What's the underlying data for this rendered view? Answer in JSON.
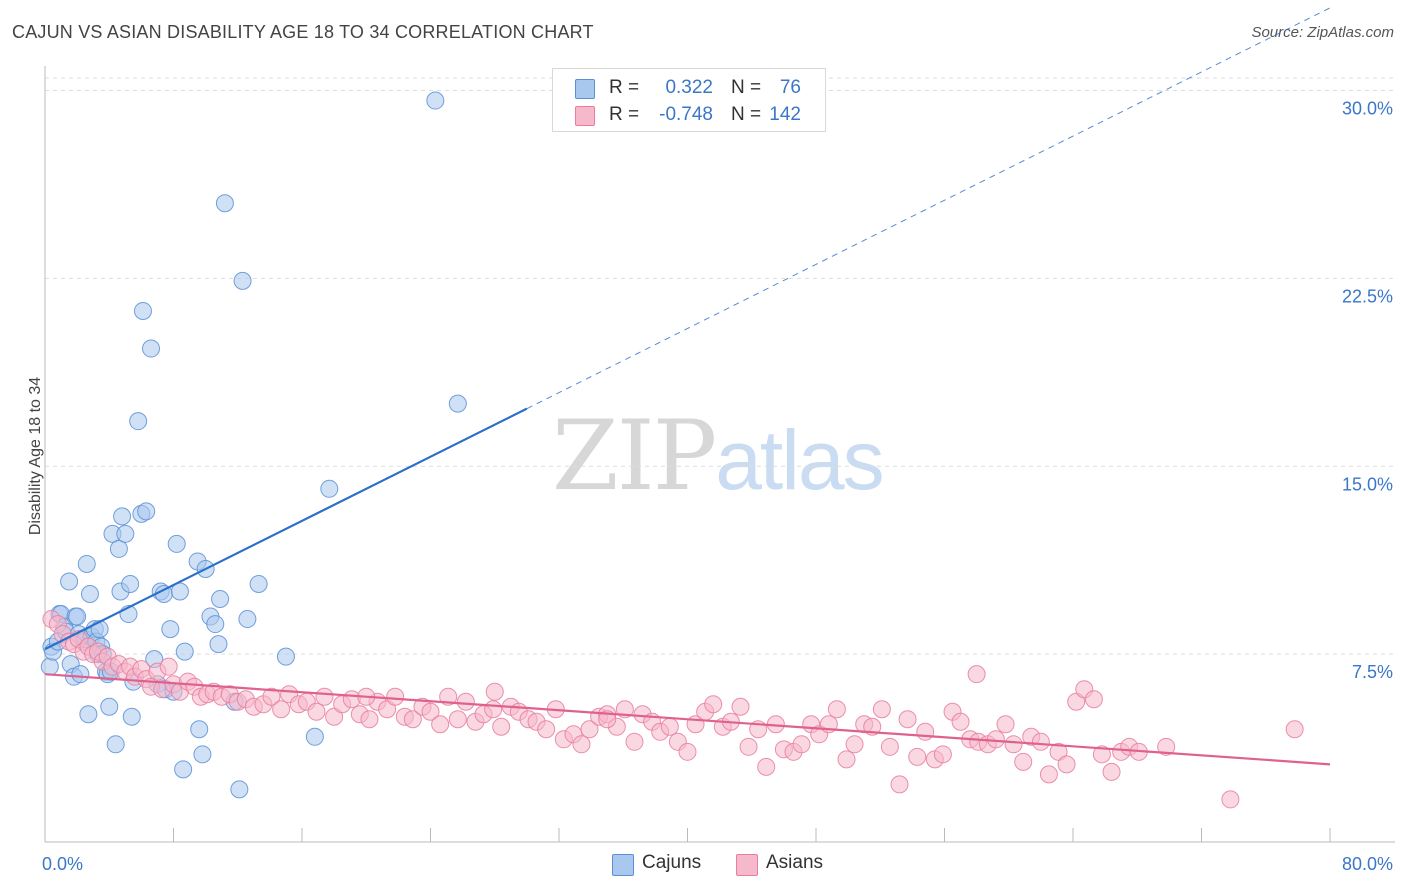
{
  "title": "CAJUN VS ASIAN DISABILITY AGE 18 TO 34 CORRELATION CHART",
  "source": "Source: ZipAtlas.com",
  "watermark": {
    "zip": "ZIP",
    "atlas": "atlas"
  },
  "legend": {
    "rows": [
      {
        "r_label": "R =",
        "r_value": "0.322",
        "n_label": "N =",
        "n_value": "76",
        "color": "#a9c8ee"
      },
      {
        "r_label": "R =",
        "r_value": "-0.748",
        "n_label": "N =",
        "n_value": "142",
        "color": "#f6b8cb"
      }
    ]
  },
  "bottom_legend": [
    {
      "label": "Cajuns",
      "color": "#a9c8ee"
    },
    {
      "label": "Asians",
      "color": "#f6b8cb"
    }
  ],
  "chart_data": {
    "type": "scatter",
    "title": "CAJUN VS ASIAN DISABILITY AGE 18 TO 34 CORRELATION CHART",
    "xlabel": "",
    "ylabel": "Disability Age 18 to 34",
    "xlim": [
      0,
      80
    ],
    "ylim": [
      0,
      30.5
    ],
    "x_tick_labels": [
      {
        "value": 0,
        "label": "0.0%"
      },
      {
        "value": 80,
        "label": "80.0%"
      }
    ],
    "y_tick_labels": [
      {
        "value": 7.5,
        "label": "7.5%"
      },
      {
        "value": 15,
        "label": "15.0%"
      },
      {
        "value": 22.5,
        "label": "22.5%"
      },
      {
        "value": 30,
        "label": "30.0%"
      }
    ],
    "x_minor_ticks": [
      8,
      16,
      24,
      32,
      40,
      48,
      56,
      64,
      72,
      80
    ],
    "grid": true,
    "series": [
      {
        "name": "Cajuns",
        "color": "#5b8fd6",
        "fill": "#a9c8ee",
        "trend": {
          "x0": 0,
          "y0": 7.7,
          "x1": 30,
          "y1": 17.3,
          "dash_to_x": 80,
          "color": "#2a6fc9"
        },
        "points": [
          [
            0.3,
            7.0
          ],
          [
            0.4,
            7.8
          ],
          [
            0.5,
            7.6
          ],
          [
            0.8,
            8.0
          ],
          [
            0.9,
            9.1
          ],
          [
            1.0,
            9.1
          ],
          [
            1.2,
            8.6
          ],
          [
            1.3,
            8.4
          ],
          [
            1.5,
            10.4
          ],
          [
            1.6,
            7.1
          ],
          [
            1.8,
            6.6
          ],
          [
            1.9,
            9.0
          ],
          [
            2.1,
            8.3
          ],
          [
            2.2,
            6.7
          ],
          [
            2.4,
            8.0
          ],
          [
            2.5,
            8.1
          ],
          [
            2.6,
            11.1
          ],
          [
            2.7,
            5.1
          ],
          [
            2.8,
            9.9
          ],
          [
            2.9,
            8.2
          ],
          [
            3.1,
            8.5
          ],
          [
            3.2,
            8.0
          ],
          [
            3.3,
            7.5
          ],
          [
            3.4,
            8.5
          ],
          [
            3.5,
            7.8
          ],
          [
            3.6,
            7.5
          ],
          [
            3.8,
            6.8
          ],
          [
            3.9,
            6.7
          ],
          [
            4.0,
            5.4
          ],
          [
            4.1,
            6.8
          ],
          [
            4.2,
            12.3
          ],
          [
            4.4,
            3.9
          ],
          [
            4.6,
            11.7
          ],
          [
            4.7,
            10.0
          ],
          [
            4.8,
            13.0
          ],
          [
            5.0,
            12.3
          ],
          [
            5.2,
            9.1
          ],
          [
            5.3,
            10.3
          ],
          [
            5.4,
            5.0
          ],
          [
            5.5,
            6.4
          ],
          [
            5.8,
            16.8
          ],
          [
            6.0,
            13.1
          ],
          [
            6.1,
            21.2
          ],
          [
            6.3,
            13.2
          ],
          [
            6.6,
            19.7
          ],
          [
            6.8,
            7.3
          ],
          [
            7.0,
            6.3
          ],
          [
            7.2,
            10.0
          ],
          [
            7.4,
            9.9
          ],
          [
            7.5,
            6.1
          ],
          [
            7.8,
            8.5
          ],
          [
            8.0,
            6.0
          ],
          [
            8.2,
            11.9
          ],
          [
            8.4,
            10.0
          ],
          [
            8.6,
            2.9
          ],
          [
            8.7,
            7.6
          ],
          [
            9.5,
            11.2
          ],
          [
            9.6,
            4.5
          ],
          [
            9.8,
            3.5
          ],
          [
            10.0,
            10.9
          ],
          [
            10.3,
            9.0
          ],
          [
            10.6,
            8.7
          ],
          [
            10.8,
            7.9
          ],
          [
            10.9,
            9.7
          ],
          [
            11.2,
            25.5
          ],
          [
            11.8,
            5.6
          ],
          [
            12.1,
            2.1
          ],
          [
            12.3,
            22.4
          ],
          [
            12.6,
            8.9
          ],
          [
            13.3,
            10.3
          ],
          [
            15.0,
            7.4
          ],
          [
            16.8,
            4.2
          ],
          [
            17.7,
            14.1
          ],
          [
            24.3,
            29.6
          ],
          [
            25.7,
            17.5
          ],
          [
            2.0,
            9.0
          ]
        ]
      },
      {
        "name": "Asians",
        "color": "#e87da0",
        "fill": "#f6b8cb",
        "trend": {
          "x0": 0,
          "y0": 6.7,
          "x1": 80,
          "y1": 3.1,
          "color": "#e0608e"
        },
        "points": [
          [
            0.4,
            8.9
          ],
          [
            0.8,
            8.7
          ],
          [
            1.1,
            8.3
          ],
          [
            1.5,
            8.0
          ],
          [
            1.8,
            7.9
          ],
          [
            2.1,
            8.1
          ],
          [
            2.4,
            7.6
          ],
          [
            2.7,
            7.8
          ],
          [
            3.0,
            7.5
          ],
          [
            3.3,
            7.6
          ],
          [
            3.6,
            7.2
          ],
          [
            3.9,
            7.4
          ],
          [
            4.2,
            7.0
          ],
          [
            4.6,
            7.1
          ],
          [
            5.0,
            6.8
          ],
          [
            5.3,
            7.0
          ],
          [
            5.6,
            6.6
          ],
          [
            6.0,
            6.9
          ],
          [
            6.3,
            6.5
          ],
          [
            6.6,
            6.2
          ],
          [
            7.0,
            6.8
          ],
          [
            7.3,
            6.1
          ],
          [
            7.7,
            7.0
          ],
          [
            8.0,
            6.3
          ],
          [
            8.4,
            6.0
          ],
          [
            8.9,
            6.4
          ],
          [
            9.3,
            6.2
          ],
          [
            9.7,
            5.8
          ],
          [
            10.1,
            5.9
          ],
          [
            10.5,
            6.0
          ],
          [
            11.0,
            5.8
          ],
          [
            11.5,
            5.9
          ],
          [
            12.0,
            5.6
          ],
          [
            12.5,
            5.7
          ],
          [
            13.0,
            5.4
          ],
          [
            13.6,
            5.5
          ],
          [
            14.1,
            5.8
          ],
          [
            14.7,
            5.3
          ],
          [
            15.2,
            5.9
          ],
          [
            15.8,
            5.5
          ],
          [
            16.3,
            5.6
          ],
          [
            16.9,
            5.2
          ],
          [
            17.4,
            5.8
          ],
          [
            18.0,
            5.0
          ],
          [
            18.5,
            5.5
          ],
          [
            19.1,
            5.7
          ],
          [
            19.6,
            5.1
          ],
          [
            20.2,
            4.9
          ],
          [
            20.7,
            5.6
          ],
          [
            21.3,
            5.3
          ],
          [
            21.8,
            5.8
          ],
          [
            22.4,
            5.0
          ],
          [
            22.9,
            4.9
          ],
          [
            23.5,
            5.4
          ],
          [
            24.0,
            5.2
          ],
          [
            24.6,
            4.7
          ],
          [
            25.1,
            5.8
          ],
          [
            25.7,
            4.9
          ],
          [
            26.2,
            5.6
          ],
          [
            26.8,
            4.8
          ],
          [
            27.3,
            5.1
          ],
          [
            27.9,
            5.3
          ],
          [
            28.4,
            4.6
          ],
          [
            29.0,
            5.4
          ],
          [
            29.5,
            5.2
          ],
          [
            30.1,
            4.9
          ],
          [
            30.6,
            4.8
          ],
          [
            31.2,
            4.5
          ],
          [
            31.8,
            5.3
          ],
          [
            32.3,
            4.1
          ],
          [
            32.9,
            4.3
          ],
          [
            33.4,
            3.9
          ],
          [
            33.9,
            4.5
          ],
          [
            34.5,
            5.0
          ],
          [
            35.0,
            5.1
          ],
          [
            35.6,
            4.6
          ],
          [
            36.1,
            5.3
          ],
          [
            36.7,
            4.0
          ],
          [
            37.2,
            5.1
          ],
          [
            37.8,
            4.8
          ],
          [
            38.3,
            4.4
          ],
          [
            38.9,
            4.6
          ],
          [
            39.4,
            4.0
          ],
          [
            40.0,
            3.6
          ],
          [
            40.5,
            4.7
          ],
          [
            41.1,
            5.2
          ],
          [
            41.6,
            5.5
          ],
          [
            42.2,
            4.6
          ],
          [
            42.7,
            4.8
          ],
          [
            43.3,
            5.4
          ],
          [
            43.8,
            3.8
          ],
          [
            44.4,
            4.5
          ],
          [
            44.9,
            3.0
          ],
          [
            45.5,
            4.7
          ],
          [
            46.0,
            3.7
          ],
          [
            46.6,
            3.6
          ],
          [
            47.1,
            3.9
          ],
          [
            47.7,
            4.7
          ],
          [
            48.2,
            4.3
          ],
          [
            48.8,
            4.7
          ],
          [
            49.3,
            5.3
          ],
          [
            49.9,
            3.3
          ],
          [
            50.4,
            3.9
          ],
          [
            51.0,
            4.7
          ],
          [
            51.5,
            4.6
          ],
          [
            52.1,
            5.3
          ],
          [
            52.6,
            3.8
          ],
          [
            53.2,
            2.3
          ],
          [
            53.7,
            4.9
          ],
          [
            54.3,
            3.4
          ],
          [
            54.8,
            4.4
          ],
          [
            55.4,
            3.3
          ],
          [
            55.9,
            3.5
          ],
          [
            56.5,
            5.2
          ],
          [
            57.0,
            4.8
          ],
          [
            57.6,
            4.1
          ],
          [
            58.1,
            4.0
          ],
          [
            58.7,
            3.9
          ],
          [
            59.2,
            4.1
          ],
          [
            59.8,
            4.7
          ],
          [
            60.3,
            3.9
          ],
          [
            60.9,
            3.2
          ],
          [
            61.4,
            4.2
          ],
          [
            62.0,
            4.0
          ],
          [
            62.5,
            2.7
          ],
          [
            63.1,
            3.6
          ],
          [
            63.6,
            3.1
          ],
          [
            64.2,
            5.6
          ],
          [
            64.7,
            6.1
          ],
          [
            65.3,
            5.7
          ],
          [
            65.8,
            3.5
          ],
          [
            66.4,
            2.8
          ],
          [
            67.0,
            3.6
          ],
          [
            67.5,
            3.8
          ],
          [
            68.1,
            3.6
          ],
          [
            69.8,
            3.8
          ],
          [
            73.8,
            1.7
          ],
          [
            77.8,
            4.5
          ],
          [
            28.0,
            6.0
          ],
          [
            35.0,
            4.9
          ],
          [
            58.0,
            6.7
          ],
          [
            20.0,
            5.8
          ]
        ]
      }
    ]
  }
}
